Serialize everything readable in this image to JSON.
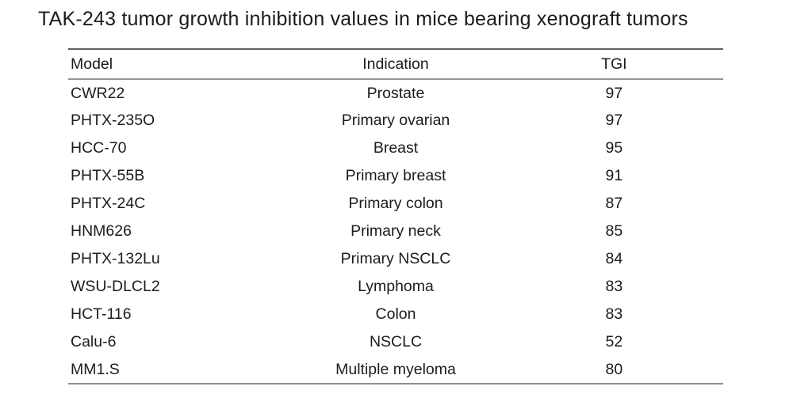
{
  "title": "TAK-243 tumor growth inhibition values in mice bearing xenograft tumors",
  "table": {
    "columns": [
      "Model",
      "Indication",
      "TGI"
    ],
    "rows": [
      {
        "model": "CWR22",
        "indication": "Prostate",
        "tgi": "97"
      },
      {
        "model": "PHTX-235O",
        "indication": "Primary ovarian",
        "tgi": "97"
      },
      {
        "model": "HCC-70",
        "indication": "Breast",
        "tgi": "95"
      },
      {
        "model": "PHTX-55B",
        "indication": "Primary breast",
        "tgi": "91"
      },
      {
        "model": "PHTX-24C",
        "indication": "Primary colon",
        "tgi": "87"
      },
      {
        "model": "HNM626",
        "indication": "Primary neck",
        "tgi": "85"
      },
      {
        "model": "PHTX-132Lu",
        "indication": "Primary NSCLC",
        "tgi": "84"
      },
      {
        "model": "WSU-DLCL2",
        "indication": "Lymphoma",
        "tgi": "83"
      },
      {
        "model": "HCT-116",
        "indication": "Colon",
        "tgi": "83"
      },
      {
        "model": "Calu-6",
        "indication": "NSCLC",
        "tgi": "52"
      },
      {
        "model": "MM1.S",
        "indication": "Multiple myeloma",
        "tgi": "80"
      }
    ]
  },
  "colors": {
    "background": "#ffffff",
    "text": "#1c1c1c",
    "rule_top": "#5f5f5f",
    "rule_gray": "#8f8f8f"
  }
}
